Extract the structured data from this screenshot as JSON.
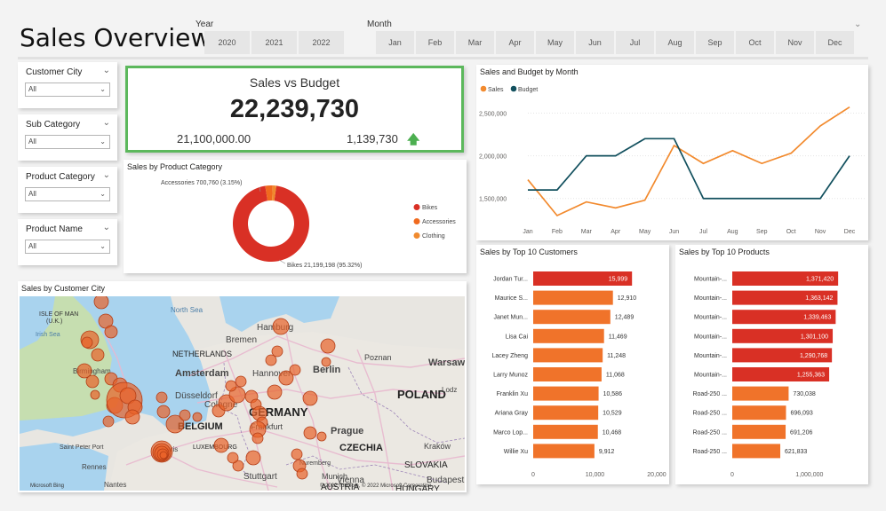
{
  "page": {
    "title": "Sales Overview"
  },
  "year_slicer": {
    "label": "Year",
    "options": [
      "2020",
      "2021",
      "2022"
    ]
  },
  "month_slicer": {
    "label": "Month",
    "options": [
      "Jan",
      "Feb",
      "Mar",
      "Apr",
      "May",
      "Jun",
      "Jul",
      "Aug",
      "Sep",
      "Oct",
      "Nov",
      "Dec"
    ]
  },
  "filters": [
    {
      "title": "Customer City",
      "value": "All"
    },
    {
      "title": "Sub Category",
      "value": "All"
    },
    {
      "title": "Product Category",
      "value": "All"
    },
    {
      "title": "Product Name",
      "value": "All"
    }
  ],
  "kpi": {
    "title": "Sales vs Budget",
    "value": "22,239,730",
    "budget": "21,100,000.00",
    "variance": "1,139,730",
    "border_color": "#5cb85c",
    "arrow_color": "#4caf50"
  },
  "colors": {
    "sales": "#f28a2e",
    "budget": "#12505e",
    "bikes": "#d93025",
    "accessories": "#f06a1e",
    "clothing": "#f08a2e",
    "bar_top": "#d93025",
    "bar_orange": "#f0732a"
  },
  "line_chart": {
    "title": "Sales and Budget by Month",
    "legend": [
      "Sales",
      "Budget"
    ],
    "chart_data": {
      "type": "line",
      "categories": [
        "Jan",
        "Feb",
        "Mar",
        "Apr",
        "May",
        "Jun",
        "Jul",
        "Aug",
        "Sep",
        "Oct",
        "Nov",
        "Dec"
      ],
      "y_ticks": [
        "2,500,000",
        "2,000,000",
        "1,500,000"
      ],
      "ylim": [
        1300000,
        2650000
      ],
      "legend_position": "top-left",
      "series": [
        {
          "name": "Sales",
          "values": [
            1720000,
            1300000,
            1460000,
            1390000,
            1480000,
            2120000,
            1910000,
            2060000,
            1910000,
            2030000,
            2350000,
            2570000
          ]
        },
        {
          "name": "Budget",
          "values": [
            1600000,
            1600000,
            2000000,
            2000000,
            2200000,
            2200000,
            1500000,
            1500000,
            1500000,
            1500000,
            1500000,
            2000000
          ]
        }
      ]
    }
  },
  "donut": {
    "title": "Sales by Product Category",
    "label_accessories": "Accessories 700,760 (3.15%)",
    "label_bikes": "Bikes 21,199,198 (95.32%)",
    "chart_data": {
      "type": "pie",
      "legend_position": "right",
      "slices": [
        {
          "name": "Bikes",
          "value": 21199198
        },
        {
          "name": "Accessories",
          "value": 700760
        },
        {
          "name": "Clothing",
          "value": 339772
        }
      ]
    }
  },
  "map": {
    "title": "Sales by Customer City",
    "labels": [
      "ISLE OF MAN",
      "(U.K.)",
      "Irish Sea",
      "North Sea",
      "Hamburg",
      "Bremen",
      "NETHERLANDS",
      "Amsterdam",
      "Hannover",
      "Berlin",
      "Poznan",
      "Warsaw",
      "POLAND",
      "Birmingham",
      "Düsseldorf",
      "Cologne",
      "GERMANY",
      "BELGIUM",
      "Frankfurt",
      "Prague",
      "LUXEMBOURG",
      "CZECHIA",
      "Kraków",
      "Saint Peter Port",
      "Paris",
      "Stuttgart",
      "Munich",
      "SLOVAKIA",
      "Vienna",
      "Budapest",
      "AUSTRIA",
      "HUNGARY",
      "Rennes",
      "Nantes",
      "Nuremberg",
      "Lodz"
    ],
    "attribution_left": "Microsoft Bing",
    "attribution_right": "© 2022 TomTom, © 2022 Microsoft Corporation"
  },
  "customers_chart": {
    "title": "Sales by Top 10 Customers",
    "chart_data": {
      "type": "bar",
      "orientation": "horizontal",
      "categories": [
        "Jordan Tur...",
        "Maurice S...",
        "Janet Mun...",
        "Lisa Cai",
        "Lacey Zheng",
        "Larry Munoz",
        "Franklin Xu",
        "Ariana Gray",
        "Marco Lop...",
        "Willie Xu"
      ],
      "values": [
        15999,
        12910,
        12489,
        11469,
        11248,
        11068,
        10586,
        10529,
        10468,
        9912
      ],
      "value_labels": [
        "15,999",
        "12,910",
        "12,489",
        "11,469",
        "11,248",
        "11,068",
        "10,586",
        "10,529",
        "10,468",
        "9,912"
      ],
      "x_ticks": [
        "0",
        "10,000",
        "20,000"
      ],
      "xlim": [
        0,
        20000
      ]
    }
  },
  "products_chart": {
    "title": "Sales by Top 10 Products",
    "chart_data": {
      "type": "bar",
      "orientation": "horizontal",
      "categories": [
        "Mountain-...",
        "Mountain-...",
        "Mountain-...",
        "Mountain-...",
        "Mountain-...",
        "Mountain-...",
        "Road-250 ...",
        "Road-250 ...",
        "Road-250 ...",
        "Road-250 ..."
      ],
      "values": [
        1371420,
        1363142,
        1339463,
        1301100,
        1290768,
        1255363,
        730038,
        696093,
        691206,
        621833
      ],
      "value_labels": [
        "1,371,420",
        "1,363,142",
        "1,339,463",
        "1,301,100",
        "1,290,768",
        "1,255,363",
        "730,038",
        "696,093",
        "691,206",
        "621,833"
      ],
      "x_ticks": [
        "0",
        "1,000,000"
      ],
      "xlim": [
        0,
        1600000
      ]
    }
  }
}
